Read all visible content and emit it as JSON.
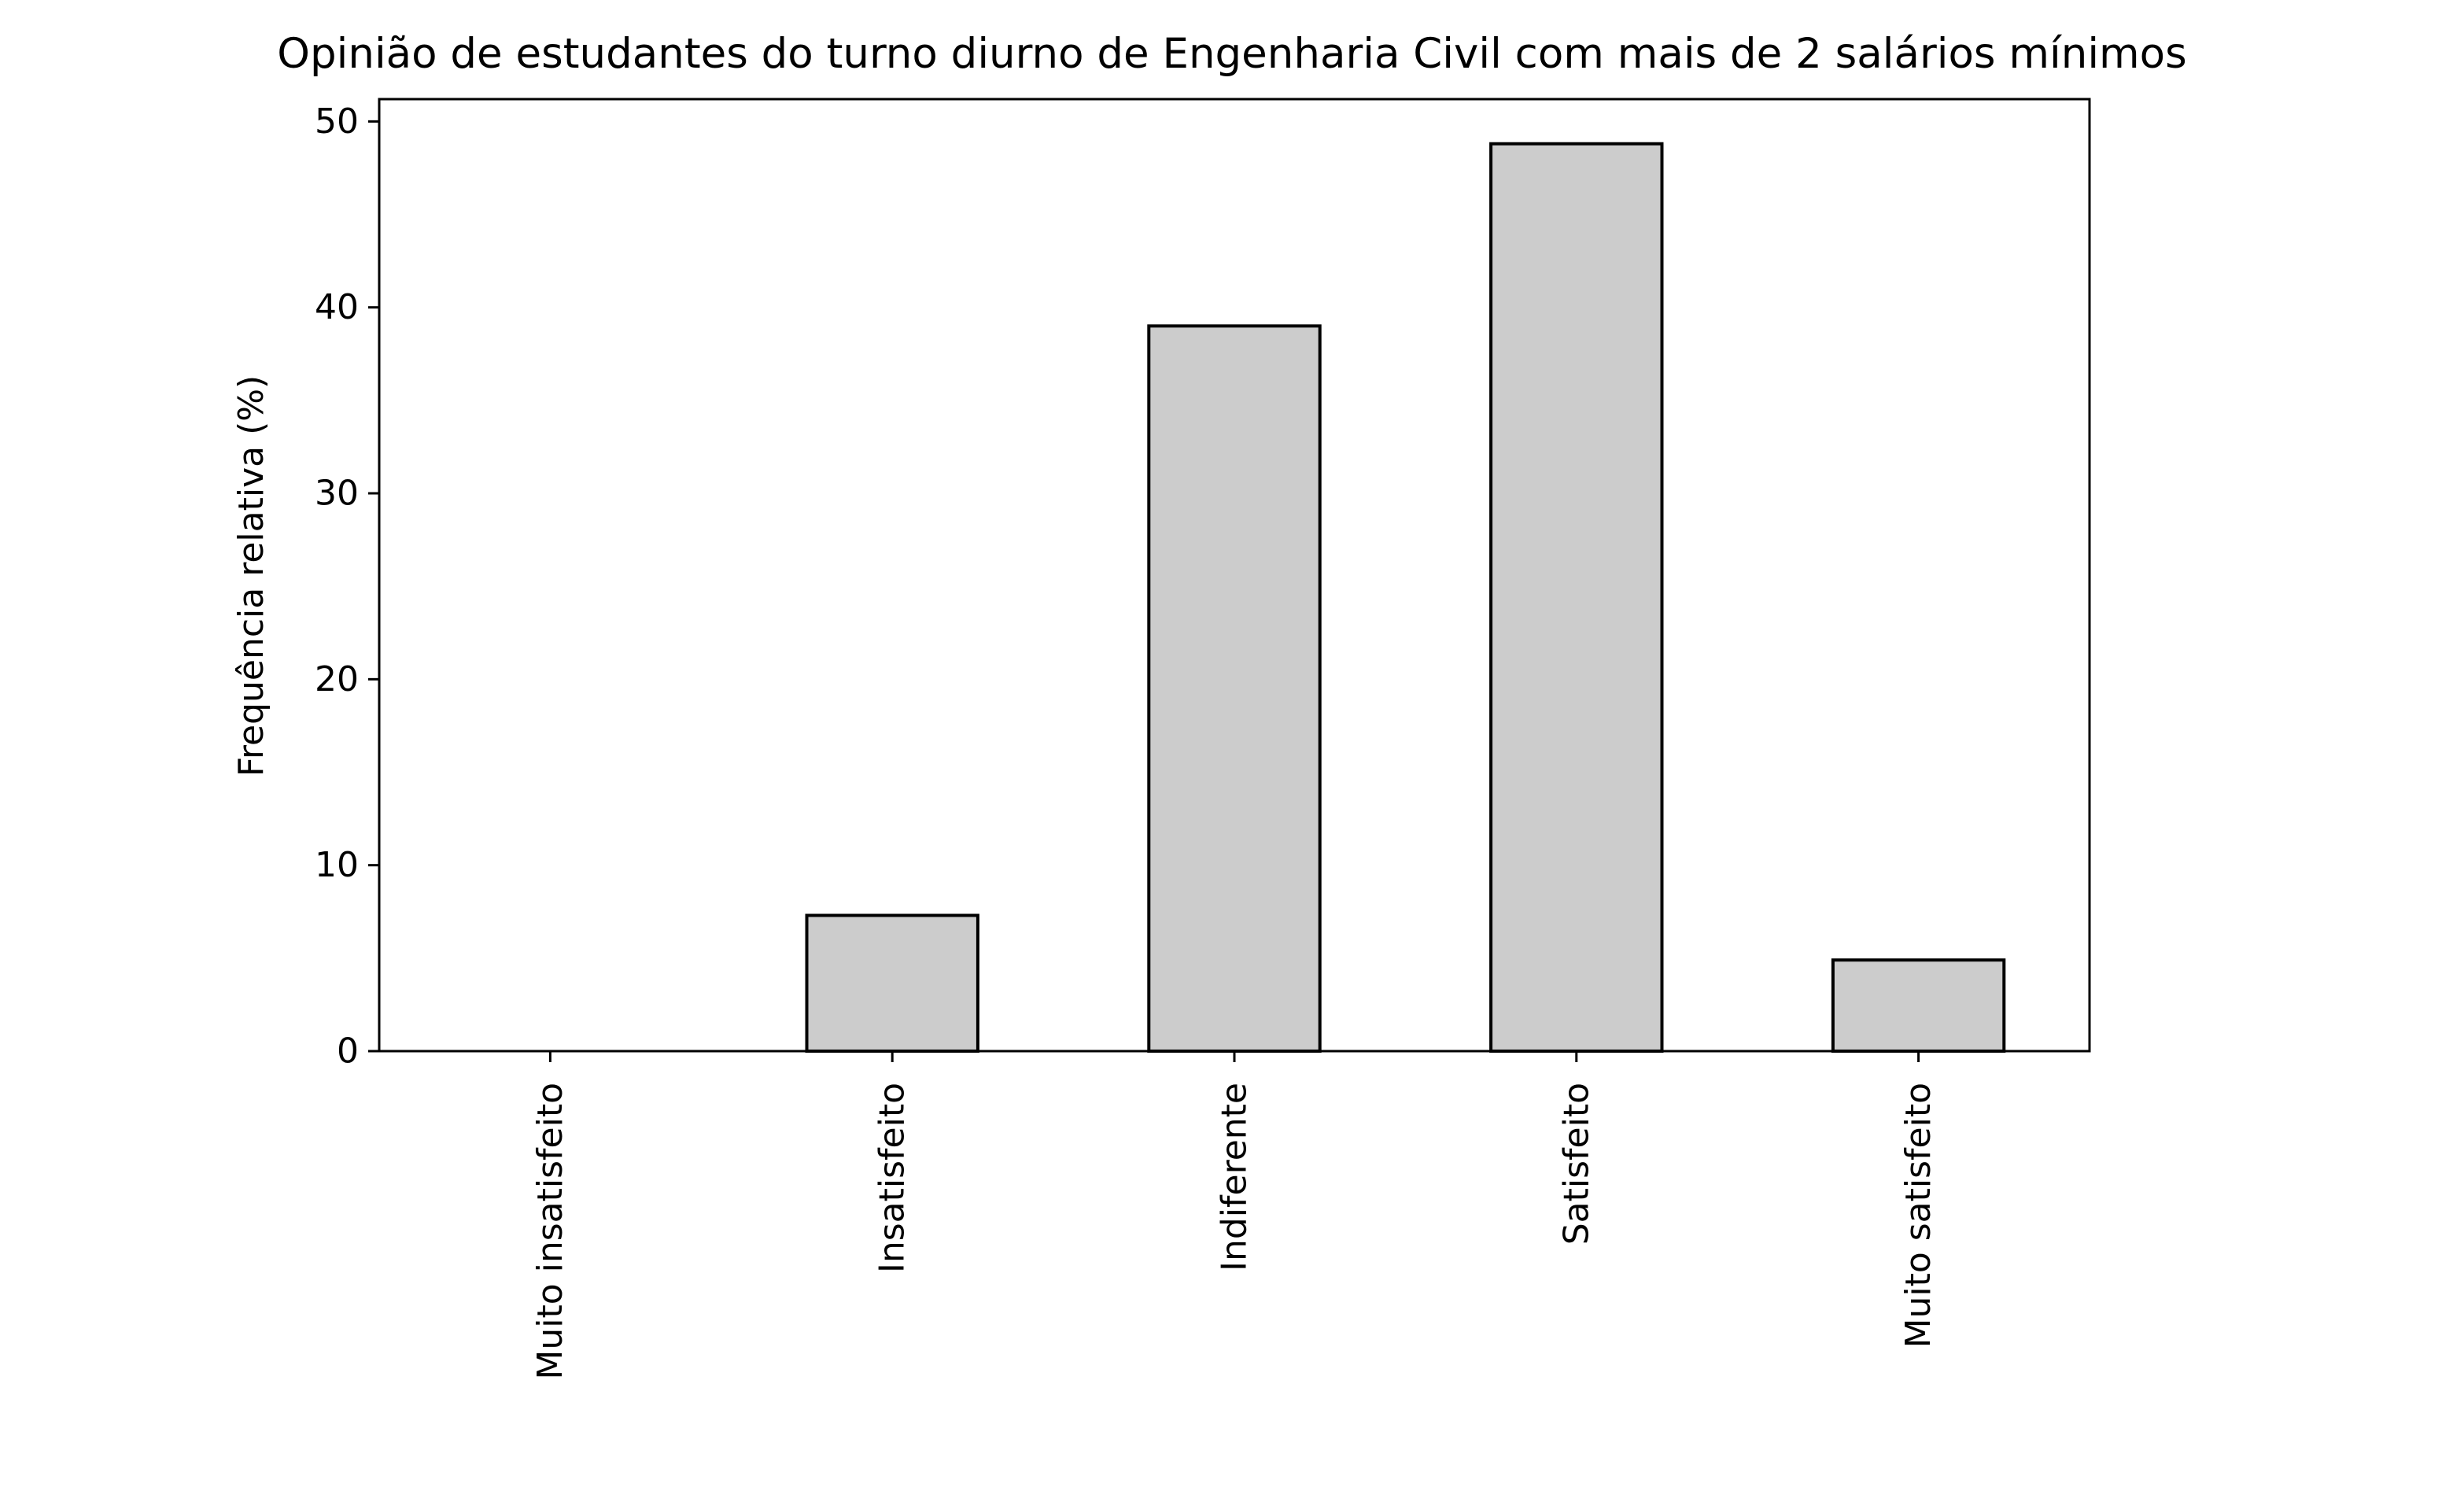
{
  "chart_data": {
    "type": "bar",
    "title": "Opinião de estudantes do turno diurno de Engenharia Civil com mais de 2 salários mínimos",
    "xlabel": "",
    "ylabel": "Frequência relativa (%)",
    "categories": [
      "Muito insatisfeito",
      "Insatisfeito",
      "Indiferente",
      "Satisfeito",
      "Muito satisfeito"
    ],
    "values": [
      0,
      7.3,
      39.0,
      48.8,
      4.9
    ],
    "yticks": [
      0,
      10,
      20,
      30,
      40,
      50
    ],
    "ylim": [
      0,
      51.2
    ],
    "grid": false,
    "legend": "none",
    "bar_color": "#cccccc",
    "edge_color": "#000000"
  }
}
